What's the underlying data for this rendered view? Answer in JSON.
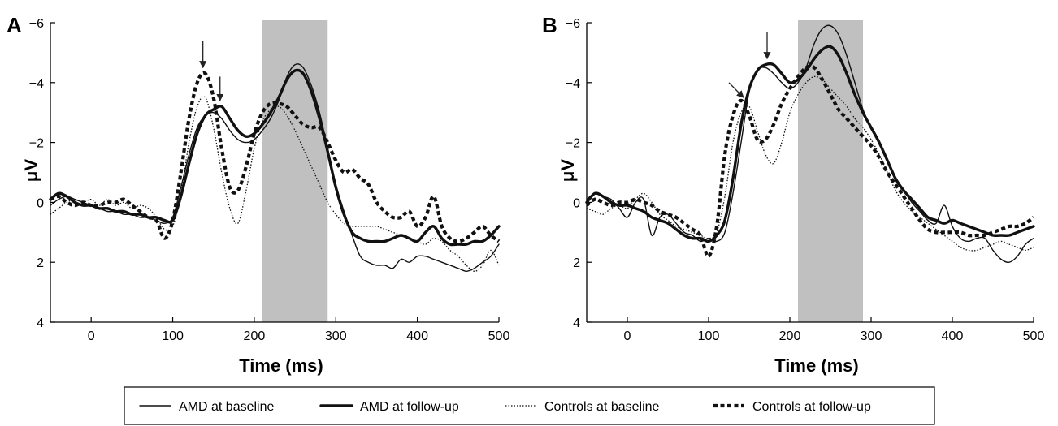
{
  "figure": {
    "legend": [
      {
        "label": "AMD at baseline",
        "style": "thin-solid"
      },
      {
        "label": "AMD at follow-up",
        "style": "thick-solid"
      },
      {
        "label": "Controls at baseline",
        "style": "thin-dotted"
      },
      {
        "label": "Controls at follow-up",
        "style": "thick-dashed"
      }
    ]
  },
  "chart_data": [
    {
      "type": "line",
      "panel": "A",
      "xlabel": "Time (ms)",
      "ylabel": "μV",
      "xlim": [
        -50,
        500
      ],
      "ylim": [
        -6,
        4
      ],
      "y_inverted": true,
      "xticks": [
        0,
        100,
        200,
        300,
        400,
        500
      ],
      "yticks": [
        -6,
        -4,
        -2,
        0,
        2,
        4
      ],
      "ytick_labels": [
        "−6",
        "−4",
        "−2",
        "0",
        "2",
        "4"
      ],
      "shaded_region": [
        210,
        290
      ],
      "shade_color": "#c0c0c0",
      "arrows": [
        {
          "x": 137,
          "y_tip": -4.5,
          "y_tail": -5.4
        },
        {
          "x": 158,
          "y_tip": -3.4,
          "y_tail": -4.2
        }
      ],
      "series": [
        {
          "name": "AMD at baseline",
          "style": "thin-solid",
          "x": [
            -50,
            -40,
            -30,
            -20,
            -10,
            0,
            10,
            20,
            30,
            40,
            50,
            60,
            70,
            80,
            90,
            100,
            110,
            120,
            130,
            140,
            150,
            160,
            170,
            180,
            190,
            200,
            210,
            220,
            230,
            240,
            250,
            260,
            270,
            280,
            290,
            300,
            310,
            320,
            330,
            340,
            350,
            360,
            370,
            380,
            390,
            400,
            410,
            420,
            430,
            440,
            450,
            460,
            470,
            480,
            490,
            500
          ],
          "y": [
            0.1,
            -0.1,
            -0.2,
            -0.1,
            0.0,
            0.1,
            0.2,
            0.3,
            0.3,
            0.4,
            0.4,
            0.5,
            0.5,
            0.6,
            0.7,
            0.5,
            -0.5,
            -1.6,
            -2.5,
            -2.9,
            -3.0,
            -2.8,
            -2.4,
            -2.1,
            -2.0,
            -2.1,
            -2.4,
            -2.8,
            -3.4,
            -4.2,
            -4.6,
            -4.5,
            -3.9,
            -3.0,
            -1.8,
            -0.6,
            0.3,
            1.1,
            1.8,
            2.0,
            2.1,
            2.1,
            2.2,
            1.9,
            2.0,
            1.8,
            1.8,
            1.9,
            2.0,
            2.1,
            2.2,
            2.3,
            2.2,
            2.0,
            1.8,
            1.4
          ]
        },
        {
          "name": "AMD at follow-up",
          "style": "thick-solid",
          "x": [
            -50,
            -40,
            -30,
            -20,
            -10,
            0,
            10,
            20,
            30,
            40,
            50,
            60,
            70,
            80,
            90,
            100,
            110,
            120,
            130,
            140,
            150,
            160,
            170,
            180,
            190,
            200,
            210,
            220,
            230,
            240,
            250,
            260,
            270,
            280,
            290,
            300,
            310,
            320,
            330,
            340,
            350,
            360,
            370,
            380,
            390,
            400,
            410,
            420,
            430,
            440,
            450,
            460,
            470,
            480,
            490,
            500
          ],
          "y": [
            -0.1,
            -0.3,
            -0.2,
            0.0,
            0.1,
            0.1,
            0.2,
            0.2,
            0.3,
            0.3,
            0.4,
            0.4,
            0.5,
            0.5,
            0.6,
            0.6,
            -0.2,
            -1.3,
            -2.3,
            -2.9,
            -3.1,
            -3.2,
            -2.8,
            -2.4,
            -2.2,
            -2.3,
            -2.6,
            -3.0,
            -3.5,
            -4.1,
            -4.4,
            -4.3,
            -3.7,
            -2.8,
            -1.7,
            -0.5,
            0.4,
            1.0,
            1.2,
            1.3,
            1.3,
            1.3,
            1.2,
            1.1,
            1.2,
            1.3,
            1.0,
            0.8,
            1.2,
            1.4,
            1.4,
            1.4,
            1.3,
            1.3,
            1.1,
            0.8
          ]
        },
        {
          "name": "Controls at baseline",
          "style": "thin-dotted",
          "x": [
            -50,
            -40,
            -30,
            -20,
            -10,
            0,
            10,
            20,
            30,
            40,
            50,
            60,
            70,
            80,
            90,
            100,
            110,
            120,
            130,
            140,
            150,
            160,
            170,
            180,
            190,
            200,
            210,
            220,
            230,
            240,
            250,
            260,
            270,
            280,
            290,
            300,
            310,
            320,
            330,
            340,
            350,
            360,
            370,
            380,
            390,
            400,
            410,
            420,
            430,
            440,
            450,
            460,
            470,
            480,
            490,
            500
          ],
          "y": [
            0.4,
            0.2,
            0.0,
            -0.1,
            0.0,
            -0.1,
            0.1,
            -0.1,
            0.1,
            0.0,
            0.2,
            0.1,
            0.2,
            0.5,
            0.9,
            0.8,
            -0.3,
            -2.0,
            -3.2,
            -3.5,
            -2.5,
            -1.0,
            0.2,
            0.7,
            -0.4,
            -1.8,
            -2.7,
            -3.1,
            -3.2,
            -2.9,
            -2.4,
            -1.8,
            -1.2,
            -0.6,
            0.0,
            0.4,
            0.7,
            0.8,
            0.8,
            0.8,
            0.8,
            0.9,
            1.0,
            1.1,
            1.2,
            1.3,
            1.4,
            1.2,
            1.3,
            1.6,
            1.8,
            2.1,
            2.3,
            2.1,
            1.6,
            2.1
          ]
        },
        {
          "name": "Controls at follow-up",
          "style": "thick-dashed",
          "x": [
            -50,
            -40,
            -30,
            -20,
            -10,
            0,
            10,
            20,
            30,
            40,
            50,
            60,
            70,
            80,
            90,
            100,
            110,
            120,
            130,
            140,
            150,
            160,
            170,
            180,
            190,
            200,
            210,
            220,
            230,
            240,
            250,
            260,
            270,
            280,
            290,
            300,
            310,
            320,
            330,
            340,
            350,
            360,
            370,
            380,
            390,
            400,
            410,
            420,
            430,
            440,
            450,
            460,
            470,
            480,
            490,
            500
          ],
          "y": [
            -0.1,
            -0.2,
            0.0,
            0.1,
            0.0,
            0.1,
            0.1,
            0.0,
            0.0,
            -0.1,
            0.1,
            0.3,
            0.5,
            0.6,
            1.2,
            0.6,
            -1.0,
            -2.8,
            -4.0,
            -4.3,
            -3.5,
            -1.8,
            -0.5,
            -0.4,
            -1.2,
            -2.3,
            -3.0,
            -3.3,
            -3.3,
            -3.2,
            -2.9,
            -2.6,
            -2.5,
            -2.5,
            -2.0,
            -1.4,
            -1.0,
            -1.1,
            -0.8,
            -0.6,
            0.0,
            0.3,
            0.5,
            0.5,
            0.3,
            0.8,
            0.5,
            -0.2,
            0.8,
            1.2,
            1.3,
            1.2,
            1.0,
            0.8,
            1.1,
            1.3
          ]
        }
      ]
    },
    {
      "type": "line",
      "panel": "B",
      "xlabel": "Time (ms)",
      "ylabel": "μV",
      "xlim": [
        -50,
        500
      ],
      "ylim": [
        -6,
        4
      ],
      "y_inverted": true,
      "xticks": [
        0,
        100,
        200,
        300,
        400,
        500
      ],
      "yticks": [
        -6,
        -4,
        -2,
        0,
        2,
        4
      ],
      "ytick_labels": [
        "−6",
        "−4",
        "−2",
        "0",
        "2",
        "4"
      ],
      "shaded_region": [
        210,
        290
      ],
      "shade_color": "#c0c0c0",
      "arrows": [
        {
          "x": 172,
          "y_tip": -4.8,
          "y_tail": -5.7
        },
        {
          "x": 143,
          "y_tip": -3.5,
          "y_tail": -4.0,
          "x_tail": 125
        }
      ],
      "series": [
        {
          "name": "AMD at baseline",
          "style": "thin-solid",
          "x": [
            -50,
            -40,
            -30,
            -20,
            -10,
            0,
            10,
            20,
            30,
            40,
            50,
            60,
            70,
            80,
            90,
            100,
            110,
            120,
            130,
            140,
            150,
            160,
            170,
            180,
            190,
            200,
            210,
            220,
            230,
            240,
            250,
            260,
            270,
            280,
            290,
            300,
            310,
            320,
            330,
            340,
            350,
            360,
            370,
            380,
            390,
            400,
            410,
            420,
            430,
            440,
            450,
            460,
            470,
            480,
            490,
            500
          ],
          "y": [
            -0.1,
            -0.3,
            -0.2,
            -0.1,
            0.2,
            0.5,
            0.0,
            -0.1,
            1.1,
            0.5,
            0.4,
            0.7,
            1.0,
            1.1,
            1.3,
            1.2,
            1.3,
            1.0,
            -0.3,
            -2.0,
            -3.7,
            -4.4,
            -4.5,
            -4.3,
            -4.0,
            -3.8,
            -4.0,
            -4.5,
            -5.3,
            -5.8,
            -5.9,
            -5.6,
            -4.9,
            -4.0,
            -3.1,
            -2.5,
            -2.0,
            -1.4,
            -0.8,
            -0.4,
            0.0,
            0.3,
            0.6,
            0.7,
            0.1,
            0.8,
            1.2,
            1.3,
            1.2,
            1.2,
            1.6,
            1.9,
            2.0,
            1.8,
            1.4,
            1.2
          ]
        },
        {
          "name": "AMD at follow-up",
          "style": "thick-solid",
          "x": [
            -50,
            -40,
            -30,
            -20,
            -10,
            0,
            10,
            20,
            30,
            40,
            50,
            60,
            70,
            80,
            90,
            100,
            110,
            120,
            130,
            140,
            150,
            160,
            170,
            180,
            190,
            200,
            210,
            220,
            230,
            240,
            250,
            260,
            270,
            280,
            290,
            300,
            310,
            320,
            330,
            340,
            350,
            360,
            370,
            380,
            390,
            400,
            410,
            420,
            430,
            440,
            450,
            460,
            470,
            480,
            490,
            500
          ],
          "y": [
            0.0,
            -0.3,
            -0.2,
            0.0,
            0.1,
            0.1,
            0.2,
            0.3,
            0.5,
            0.6,
            0.7,
            0.9,
            1.1,
            1.2,
            1.2,
            1.3,
            1.1,
            0.6,
            -0.8,
            -2.6,
            -3.8,
            -4.4,
            -4.6,
            -4.6,
            -4.3,
            -4.0,
            -4.1,
            -4.4,
            -4.8,
            -5.1,
            -5.2,
            -4.9,
            -4.3,
            -3.6,
            -3.0,
            -2.5,
            -2.0,
            -1.4,
            -0.8,
            -0.4,
            -0.1,
            0.2,
            0.5,
            0.6,
            0.7,
            0.6,
            0.7,
            0.8,
            0.9,
            1.0,
            1.1,
            1.1,
            1.1,
            1.0,
            0.9,
            0.8
          ]
        },
        {
          "name": "Controls at baseline",
          "style": "thin-dotted",
          "x": [
            -50,
            -40,
            -30,
            -20,
            -10,
            0,
            10,
            20,
            30,
            40,
            50,
            60,
            70,
            80,
            90,
            100,
            110,
            120,
            130,
            140,
            150,
            160,
            170,
            180,
            190,
            200,
            210,
            220,
            230,
            240,
            250,
            260,
            270,
            280,
            290,
            300,
            310,
            320,
            330,
            340,
            350,
            360,
            370,
            380,
            390,
            400,
            410,
            420,
            430,
            440,
            450,
            460,
            470,
            480,
            490,
            500
          ],
          "y": [
            0.2,
            0.3,
            0.4,
            0.2,
            0.1,
            0.2,
            -0.1,
            -0.3,
            0.0,
            0.4,
            0.6,
            0.8,
            0.9,
            1.0,
            1.1,
            1.2,
            1.0,
            -0.2,
            -2.0,
            -3.0,
            -3.2,
            -2.4,
            -1.6,
            -1.3,
            -2.0,
            -3.0,
            -3.6,
            -4.0,
            -4.2,
            -4.1,
            -3.8,
            -3.5,
            -3.2,
            -2.8,
            -2.5,
            -2.1,
            -1.6,
            -1.0,
            -0.4,
            0.0,
            0.3,
            0.5,
            0.7,
            0.9,
            1.1,
            1.3,
            1.5,
            1.6,
            1.6,
            1.5,
            1.4,
            1.3,
            1.4,
            1.5,
            1.6,
            1.5
          ]
        },
        {
          "name": "Controls at follow-up",
          "style": "thick-dashed",
          "x": [
            -50,
            -40,
            -30,
            -20,
            -10,
            0,
            10,
            20,
            30,
            40,
            50,
            60,
            70,
            80,
            90,
            100,
            110,
            120,
            130,
            140,
            150,
            160,
            170,
            180,
            190,
            200,
            210,
            220,
            230,
            240,
            250,
            260,
            270,
            280,
            290,
            300,
            310,
            320,
            330,
            340,
            350,
            360,
            370,
            380,
            390,
            400,
            410,
            420,
            430,
            440,
            450,
            460,
            470,
            480,
            490,
            500
          ],
          "y": [
            0.1,
            -0.1,
            0.0,
            0.1,
            0.0,
            0.0,
            -0.1,
            0.0,
            0.1,
            0.3,
            0.4,
            0.5,
            0.7,
            0.9,
            1.1,
            1.8,
            0.8,
            -1.6,
            -2.9,
            -3.4,
            -2.9,
            -2.1,
            -2.1,
            -2.6,
            -3.3,
            -3.8,
            -4.2,
            -4.5,
            -4.5,
            -4.1,
            -3.6,
            -3.1,
            -2.8,
            -2.5,
            -2.2,
            -1.9,
            -1.5,
            -1.0,
            -0.6,
            -0.2,
            0.2,
            0.6,
            0.9,
            1.0,
            1.0,
            1.0,
            1.0,
            1.1,
            1.1,
            1.1,
            1.0,
            0.9,
            0.8,
            0.8,
            0.7,
            0.5
          ]
        }
      ]
    }
  ]
}
